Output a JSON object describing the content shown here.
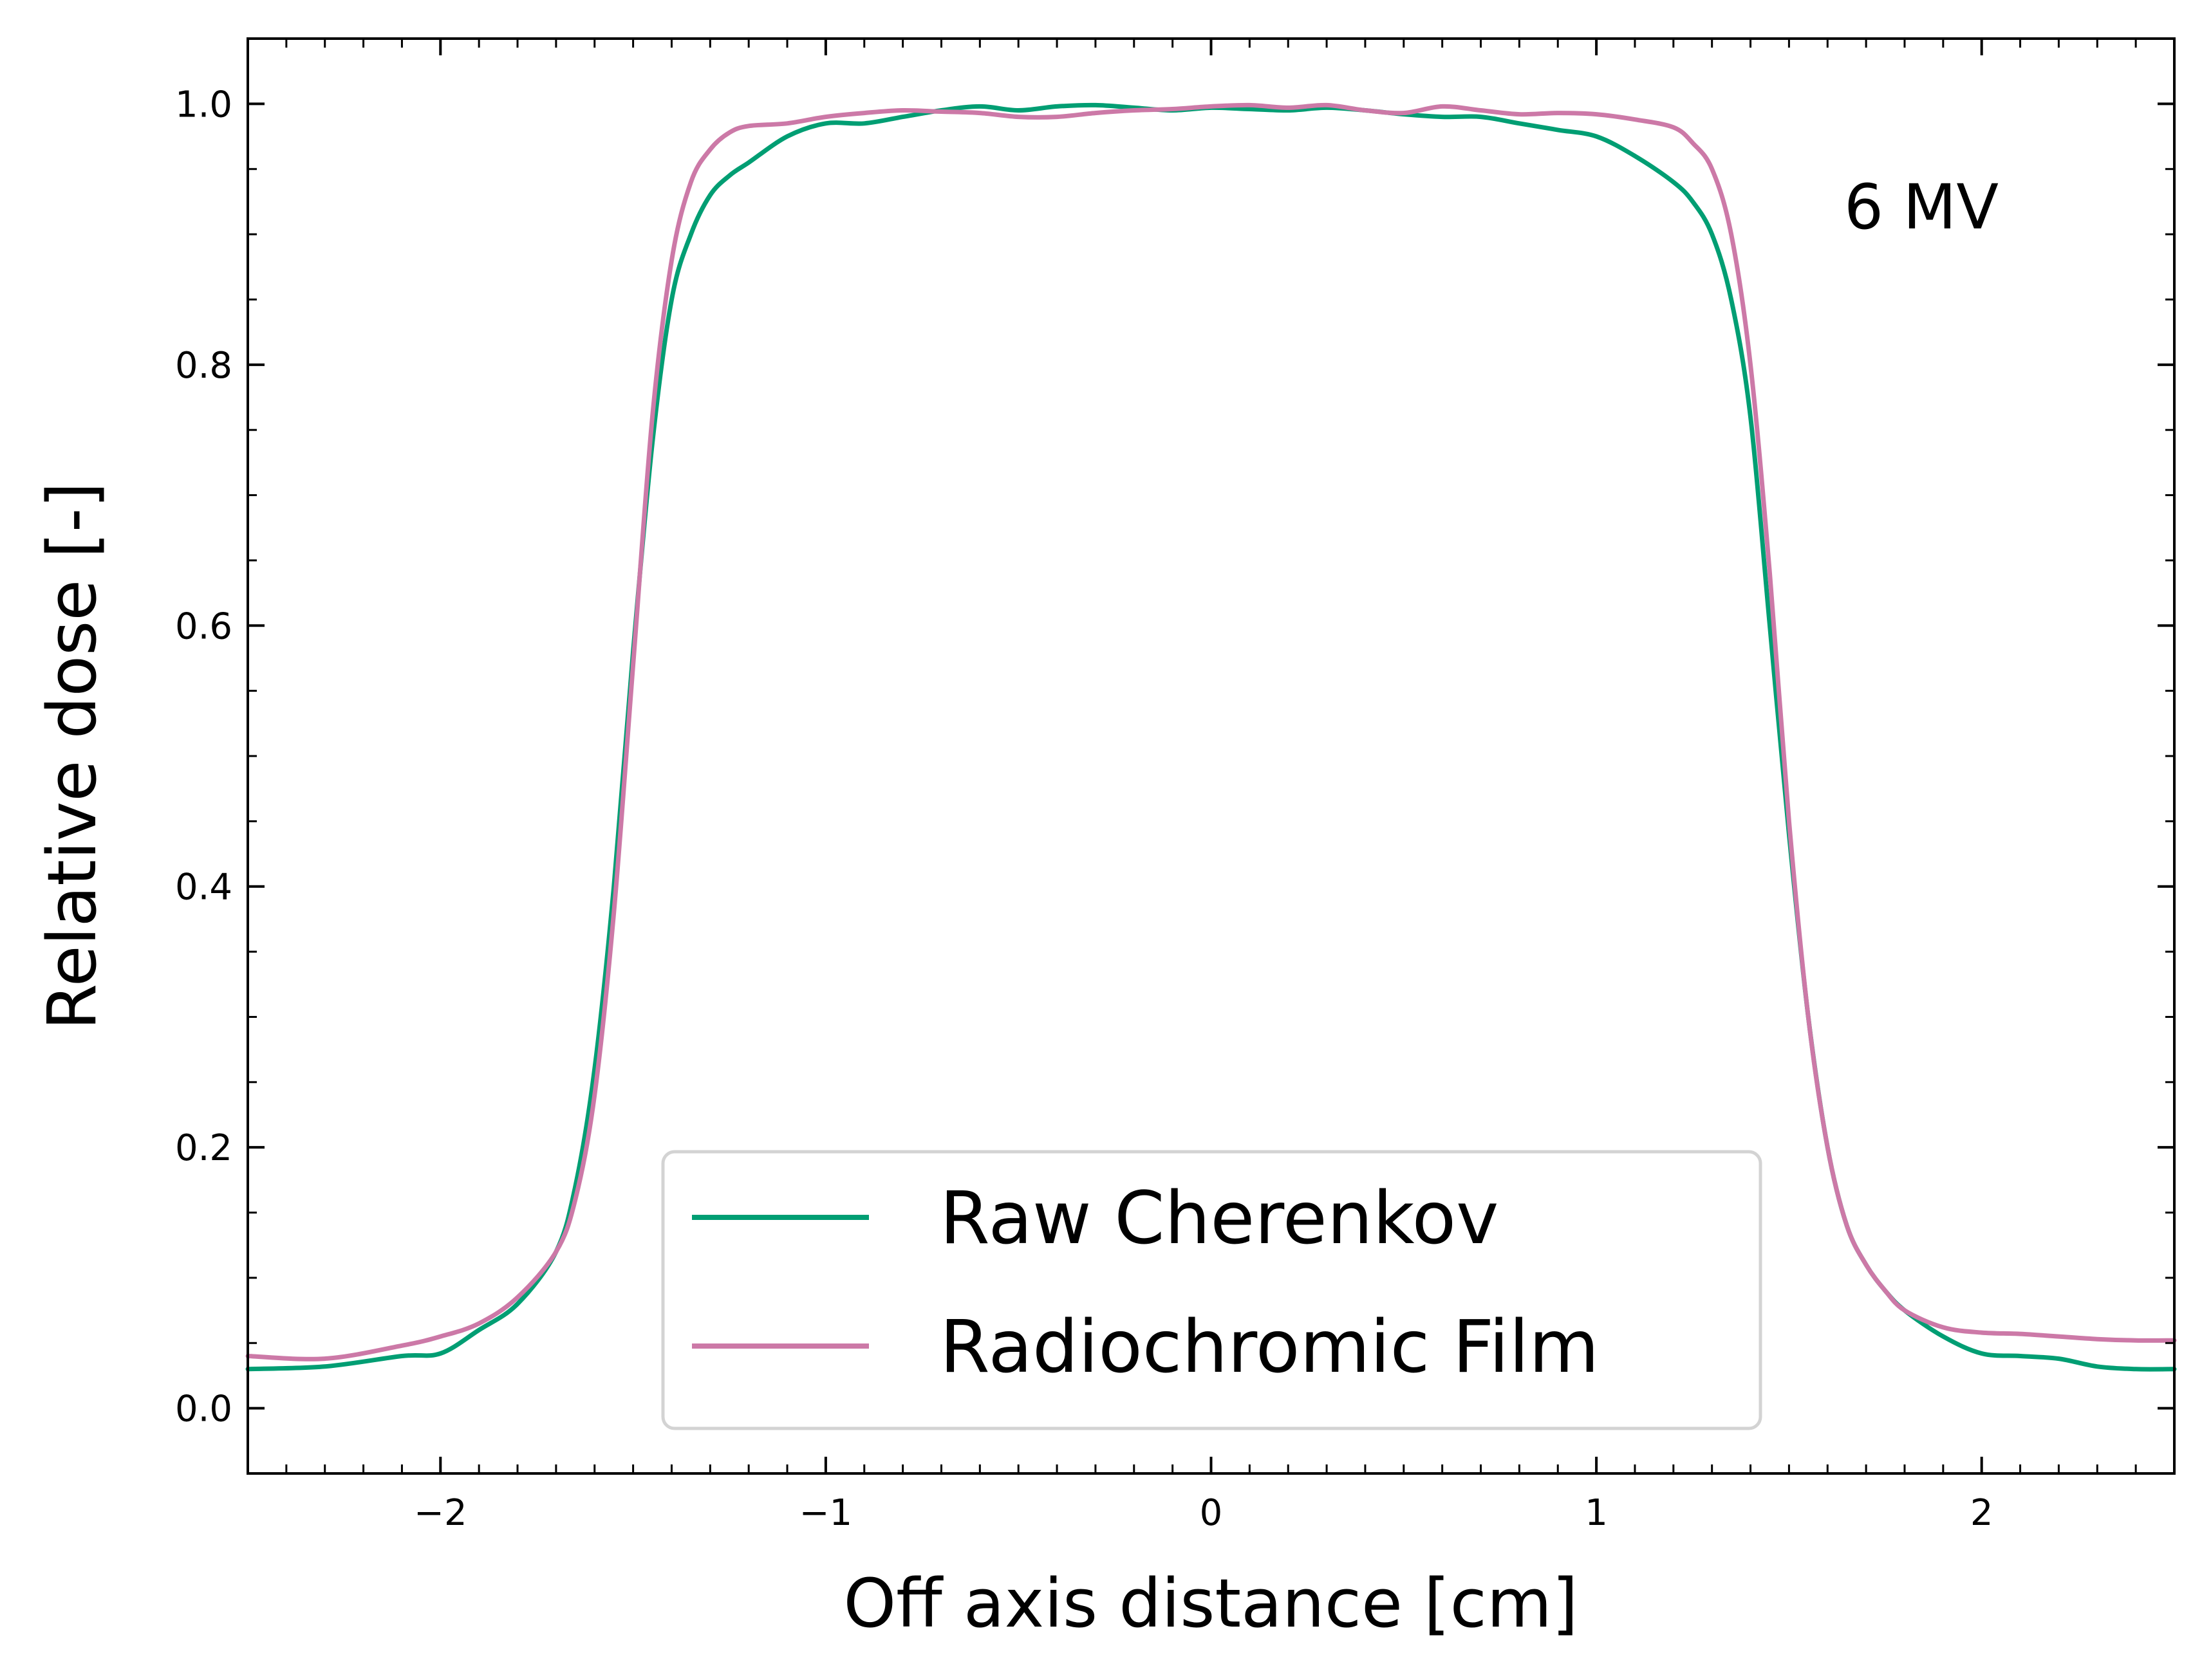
{
  "chart_data": {
    "type": "line",
    "xlabel": "Off axis distance [cm]",
    "ylabel": "Relative dose [-]",
    "xlim": [
      -2.5,
      2.5
    ],
    "ylim": [
      -0.05,
      1.05
    ],
    "xticks": [
      -2,
      -1,
      0,
      1,
      2
    ],
    "xtick_labels": [
      "−2",
      "−1",
      "0",
      "1",
      "2"
    ],
    "yticks": [
      0.0,
      0.2,
      0.4,
      0.6,
      0.8,
      1.0
    ],
    "ytick_labels": [
      "0.0",
      "0.2",
      "0.4",
      "0.6",
      "0.8",
      "1.0"
    ],
    "annotation": "6 MV",
    "grid": false,
    "legend_position": "bottom-center",
    "series": [
      {
        "name": "Raw Cherenkov",
        "color": "#009e73",
        "x": [
          -2.5,
          -2.3,
          -2.1,
          -2.0,
          -1.9,
          -1.8,
          -1.7,
          -1.65,
          -1.6,
          -1.55,
          -1.5,
          -1.45,
          -1.4,
          -1.35,
          -1.3,
          -1.25,
          -1.2,
          -1.1,
          -1.0,
          -0.9,
          -0.8,
          -0.7,
          -0.6,
          -0.5,
          -0.4,
          -0.3,
          -0.2,
          -0.1,
          0.0,
          0.1,
          0.2,
          0.3,
          0.4,
          0.5,
          0.6,
          0.7,
          0.8,
          0.9,
          1.0,
          1.1,
          1.2,
          1.25,
          1.3,
          1.35,
          1.4,
          1.45,
          1.5,
          1.55,
          1.6,
          1.65,
          1.7,
          1.75,
          1.8,
          1.9,
          2.0,
          2.1,
          2.2,
          2.3,
          2.4,
          2.5
        ],
        "y": [
          0.03,
          0.032,
          0.04,
          0.042,
          0.06,
          0.08,
          0.12,
          0.17,
          0.26,
          0.4,
          0.58,
          0.74,
          0.85,
          0.9,
          0.93,
          0.945,
          0.955,
          0.975,
          0.985,
          0.985,
          0.99,
          0.995,
          0.998,
          0.995,
          0.998,
          0.999,
          0.997,
          0.995,
          0.997,
          0.996,
          0.995,
          0.997,
          0.995,
          0.992,
          0.99,
          0.99,
          0.985,
          0.98,
          0.975,
          0.96,
          0.94,
          0.925,
          0.9,
          0.85,
          0.76,
          0.6,
          0.44,
          0.3,
          0.2,
          0.14,
          0.11,
          0.09,
          0.075,
          0.055,
          0.042,
          0.04,
          0.038,
          0.032,
          0.03,
          0.03
        ]
      },
      {
        "name": "Radiochromic Film",
        "color": "#cc79a7",
        "x": [
          -2.5,
          -2.3,
          -2.1,
          -2.0,
          -1.9,
          -1.8,
          -1.7,
          -1.65,
          -1.6,
          -1.55,
          -1.5,
          -1.45,
          -1.4,
          -1.35,
          -1.3,
          -1.25,
          -1.2,
          -1.1,
          -1.0,
          -0.9,
          -0.8,
          -0.7,
          -0.6,
          -0.5,
          -0.4,
          -0.3,
          -0.2,
          -0.1,
          0.0,
          0.1,
          0.2,
          0.3,
          0.4,
          0.5,
          0.6,
          0.7,
          0.8,
          0.9,
          1.0,
          1.1,
          1.2,
          1.25,
          1.3,
          1.35,
          1.4,
          1.45,
          1.5,
          1.55,
          1.6,
          1.65,
          1.7,
          1.75,
          1.8,
          1.9,
          2.0,
          2.1,
          2.2,
          2.3,
          2.4,
          2.5
        ],
        "y": [
          0.04,
          0.038,
          0.048,
          0.055,
          0.065,
          0.085,
          0.12,
          0.16,
          0.24,
          0.38,
          0.57,
          0.76,
          0.88,
          0.94,
          0.965,
          0.978,
          0.983,
          0.985,
          0.99,
          0.993,
          0.995,
          0.994,
          0.993,
          0.99,
          0.99,
          0.993,
          0.995,
          0.996,
          0.998,
          0.999,
          0.997,
          0.999,
          0.995,
          0.993,
          0.998,
          0.995,
          0.992,
          0.993,
          0.992,
          0.988,
          0.982,
          0.97,
          0.95,
          0.9,
          0.8,
          0.64,
          0.45,
          0.3,
          0.2,
          0.14,
          0.11,
          0.09,
          0.075,
          0.062,
          0.058,
          0.057,
          0.055,
          0.053,
          0.052,
          0.052
        ]
      }
    ]
  }
}
